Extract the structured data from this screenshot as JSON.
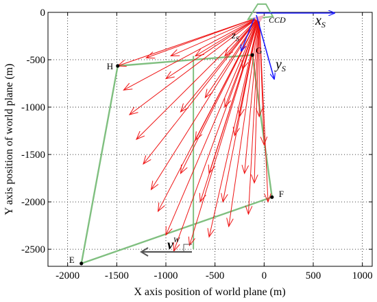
{
  "chart_data": {
    "type": "diagram",
    "xlabel": "X axis position of world plane (m)",
    "ylabel": "Y axis position of world plane (m)",
    "xlim": [
      -2200,
      1100
    ],
    "ylim": [
      -2680,
      0
    ],
    "xticks": [
      -2000,
      -1500,
      -1000,
      -500,
      0,
      500,
      1000
    ],
    "yticks": [
      0,
      -500,
      -1000,
      -1500,
      -2000,
      -2500
    ],
    "grid": true,
    "camera_origin": [
      -50,
      -50
    ],
    "camera_label": "CCD",
    "axis_labels": {
      "xs": "x",
      "xs_sub": "S",
      "ys": "y",
      "ys_sub": "S",
      "zs": "z",
      "zs_sub": "S",
      "v": "v",
      "v_sup": "W"
    },
    "points": {
      "H": [
        -1490,
        -565
      ],
      "G": [
        -120,
        -450
      ],
      "F": [
        80,
        -1950
      ],
      "E": [
        -1860,
        -2650
      ]
    },
    "colors": {
      "ray": "#ee1111",
      "outline": "#7fbf7f",
      "axis": "#1a1aff",
      "arrow": "#555555"
    },
    "ray_targets": [
      [
        -1490,
        -565
      ],
      [
        -1430,
        -820
      ],
      [
        -1370,
        -1080
      ],
      [
        -1300,
        -1340
      ],
      [
        -1230,
        -1600
      ],
      [
        -1150,
        -1870
      ],
      [
        -1080,
        -2100
      ],
      [
        -1000,
        -2350
      ],
      [
        -920,
        -2520
      ],
      [
        -760,
        -2460
      ],
      [
        -560,
        -2370
      ],
      [
        -360,
        -2260
      ],
      [
        -160,
        -2130
      ],
      [
        40,
        -2000
      ],
      [
        -1000,
        -700
      ],
      [
        -850,
        -1050
      ],
      [
        -700,
        -1350
      ],
      [
        -560,
        -1700
      ],
      [
        -420,
        -2000
      ],
      [
        -300,
        -1300
      ],
      [
        -200,
        -1700
      ],
      [
        -100,
        -1800
      ],
      [
        -50,
        -1100
      ],
      [
        0,
        -1400
      ],
      [
        -1200,
        -480
      ],
      [
        -950,
        -460
      ],
      [
        -700,
        -460
      ],
      [
        -400,
        -460
      ],
      [
        -220,
        -600
      ],
      [
        -600,
        -900
      ],
      [
        -400,
        -1000
      ],
      [
        -250,
        -1100
      ],
      [
        -850,
        -1700
      ],
      [
        -650,
        -2000
      ]
    ]
  }
}
